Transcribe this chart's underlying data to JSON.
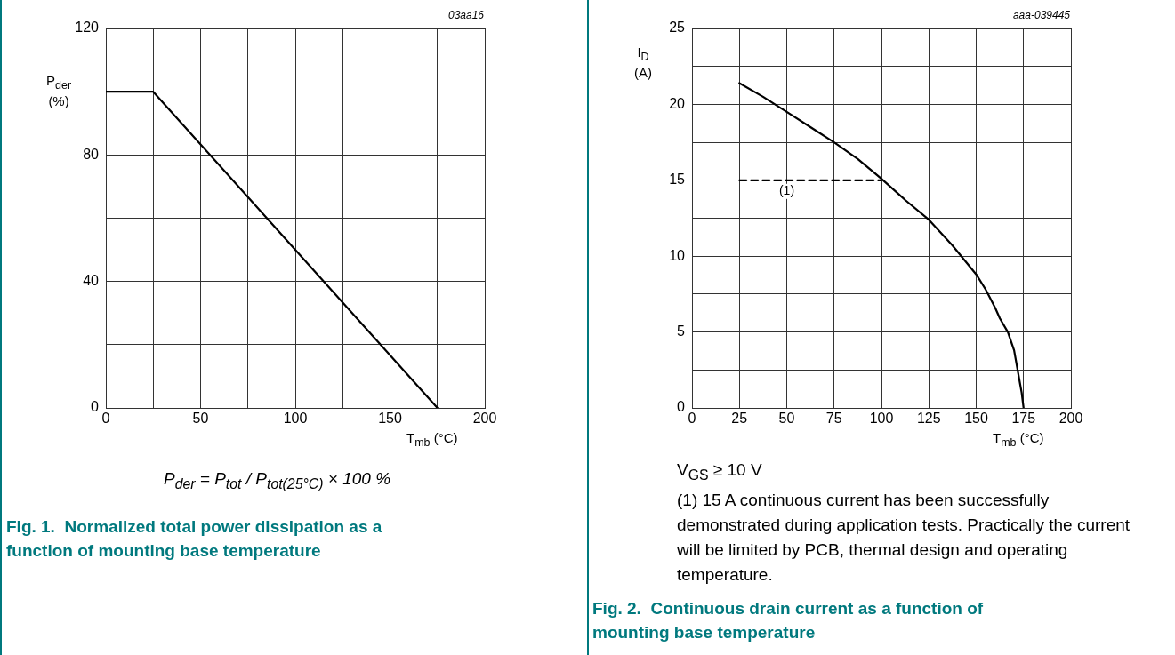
{
  "chart_data": [
    {
      "type": "line",
      "xlabel": "T$_{mb}$ (°C)",
      "ylabel": "P$_{der}$\n(%)",
      "x": [
        0,
        25,
        175
      ],
      "series": [
        {
          "color": "#000000",
          "values": [
            100,
            100,
            0
          ]
        }
      ],
      "xlim": [
        0,
        200
      ],
      "xticks": [
        0,
        {
          "value": 25,
          "label": null
        },
        50,
        {
          "value": 75,
          "label": null
        },
        100,
        {
          "value": 125,
          "label": null
        },
        150,
        {
          "value": 175,
          "label": null
        },
        200
      ],
      "ylim": [
        0,
        120
      ],
      "yticks": [
        0,
        {
          "value": 20,
          "label": null
        },
        40,
        {
          "value": 60,
          "label": null
        },
        80,
        {
          "value": 100,
          "label": null
        },
        120
      ],
      "grid": true,
      "legend": false,
      "marker": "none",
      "line_style": "solid",
      "annotations": [
        "03aa16",
        "P$_{der}$ = P$_{tot}$ / P$_{tot(25°C)}$ × 100 %",
        "Fig. 1.  Normalized total power dissipation as a function of mounting base temperature"
      ]
    },
    {
      "type": "line",
      "xlabel": "T$_{mb}$ (°C)",
      "ylabel": "I$_{D}$\n(A)",
      "series": [
        {
          "color": "#000000",
          "x": [
            25,
            37.5,
            50,
            62.5,
            75,
            87.5,
            100,
            112.5,
            125,
            137.5,
            150,
            155,
            160,
            162.5,
            166.7,
            170,
            172,
            174,
            175
          ],
          "values": [
            21.4,
            20.5,
            19.5,
            18.5,
            17.5,
            16.4,
            15.1,
            13.7,
            12.4,
            10.7,
            8.8,
            7.8,
            6.6,
            5.9,
            5,
            3.8,
            2.4,
            1.0,
            0
          ]
        },
        {
          "color": "#000000",
          "x": [
            25,
            100
          ],
          "values": [
            15,
            15
          ],
          "line_style": "dashed"
        }
      ],
      "xlim": [
        0,
        200
      ],
      "xticks": [
        0,
        25,
        50,
        75,
        100,
        125,
        150,
        175,
        200
      ],
      "ylim": [
        0,
        25
      ],
      "yticks": [
        0,
        {
          "value": 2.5,
          "label": null
        },
        5,
        {
          "value": 7.5,
          "label": null
        },
        10,
        {
          "value": 12.5,
          "label": null
        },
        15,
        {
          "value": 17.5,
          "label": null
        },
        20,
        {
          "value": 22.5,
          "label": null
        },
        25
      ],
      "grid": true,
      "legend": false,
      "marker": "none",
      "line_style": "solid",
      "annotations": [
        "aaa-039445",
        {
          "text": "(1)",
          "x": 50,
          "y": 15
        },
        "V$_{GS}$ ≥ 10 V",
        "(1) 15 A continuous current has been successfully demonstrated during application tests. Practically the current will be limited by PCB, thermal design and operating temperature.",
        "Fig. 2.  Continuous drain current as a function of mounting base temperature"
      ]
    }
  ]
}
